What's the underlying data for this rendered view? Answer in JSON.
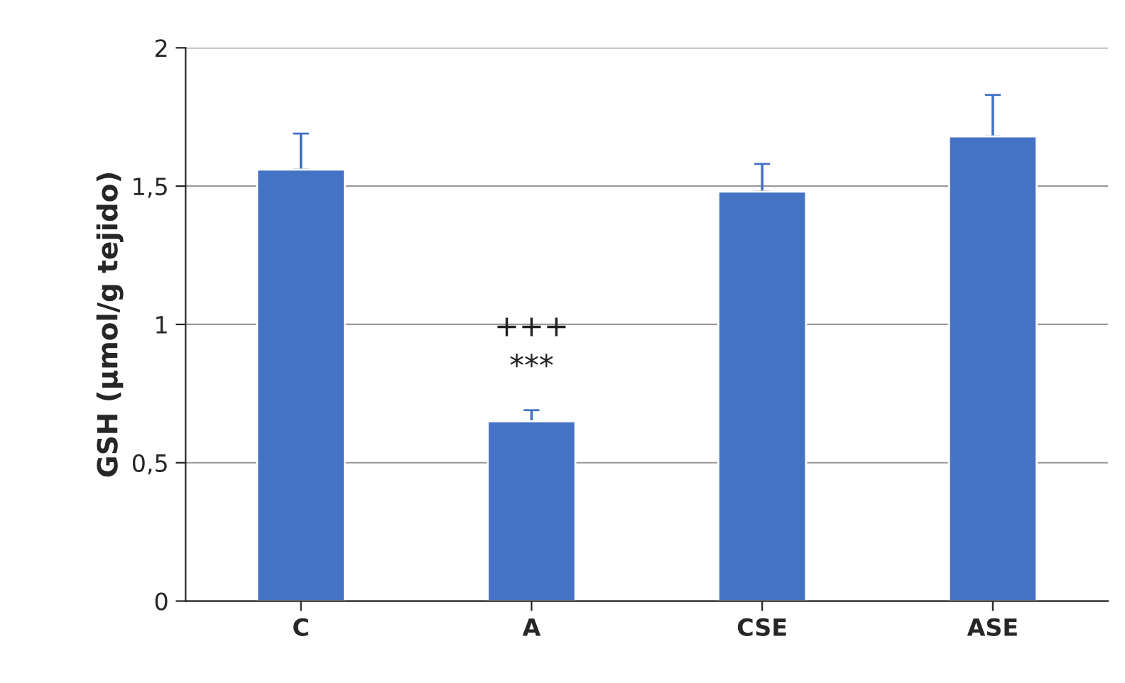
{
  "chart_data": {
    "type": "bar",
    "ylabel": "GSH (µmol/g tejido)",
    "categories": [
      "C",
      "A",
      "CSE",
      "ASE"
    ],
    "values": [
      1.56,
      0.65,
      1.48,
      1.68
    ],
    "errors": [
      [
        1.56,
        1.69
      ],
      [
        0.65,
        0.69
      ],
      [
        1.48,
        1.58
      ],
      [
        1.68,
        1.83
      ]
    ],
    "color": "#4472c4",
    "ylim": [
      0,
      2
    ],
    "yticks": [
      0,
      {
        "value": 0.5,
        "label": "0,5"
      },
      1,
      {
        "value": 1.5,
        "label": "1,5"
      },
      2
    ],
    "grid": "y",
    "annotations": [
      "+++",
      "***"
    ]
  }
}
